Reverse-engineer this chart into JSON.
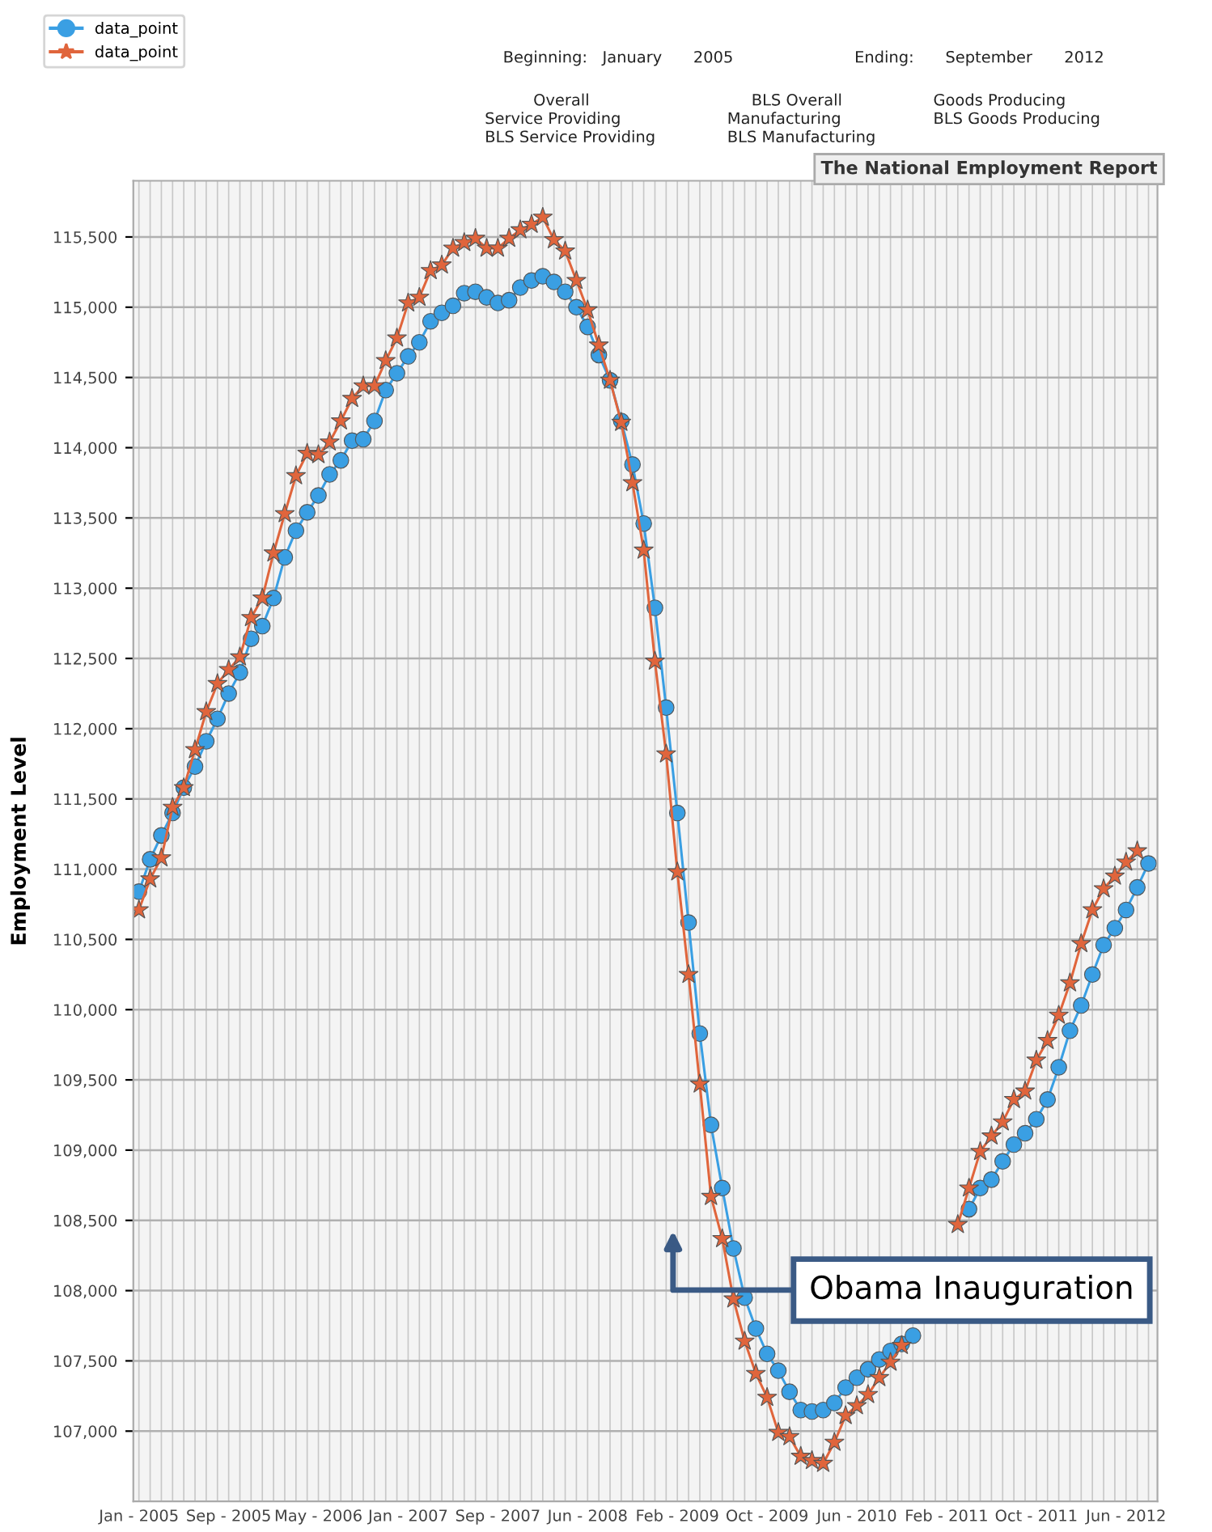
{
  "chart_data": {
    "type": "line",
    "title": "The National Employment Report",
    "ylabel": "Employment Level",
    "categories": [
      "Jan - 2005",
      null,
      null,
      null,
      null,
      null,
      null,
      null,
      "Sep - 2005",
      null,
      null,
      null,
      null,
      null,
      null,
      null,
      "May - 2006",
      null,
      null,
      null,
      null,
      null,
      null,
      null,
      "Jan - 2007",
      null,
      null,
      null,
      null,
      null,
      null,
      null,
      "Sep - 2007",
      null,
      null,
      null,
      null,
      null,
      null,
      null,
      "Jun - 2008",
      null,
      null,
      null,
      null,
      null,
      null,
      null,
      "Feb - 2009",
      null,
      null,
      null,
      null,
      null,
      null,
      null,
      "Oct - 2009",
      null,
      null,
      null,
      null,
      null,
      null,
      null,
      "Jun - 2010",
      null,
      null,
      null,
      null,
      null,
      null,
      null,
      "Feb - 2011",
      null,
      null,
      null,
      null,
      null,
      null,
      null,
      "Oct - 2011",
      null,
      null,
      null,
      null,
      null,
      null,
      null,
      "Jun - 2012",
      null,
      null
    ],
    "series": [
      {
        "name": "data_point",
        "color": "#3a9fe3",
        "marker": "circle",
        "values": [
          110840,
          111070,
          111240,
          111400,
          111580,
          111730,
          111910,
          112070,
          112250,
          112400,
          112640,
          112730,
          112930,
          113220,
          113410,
          113540,
          113660,
          113810,
          113910,
          114050,
          114060,
          114190,
          114410,
          114530,
          114650,
          114750,
          114900,
          114960,
          115010,
          115100,
          115110,
          115070,
          115030,
          115050,
          115140,
          115190,
          115220,
          115180,
          115110,
          115000,
          114860,
          114660,
          114480,
          114190,
          113880,
          113460,
          112860,
          112150,
          111400,
          110620,
          109830,
          109180,
          108730,
          108300,
          107950,
          107730,
          107550,
          107430,
          107280,
          107150,
          107140,
          107150,
          107200,
          107310,
          107380,
          107440,
          107510,
          107570,
          107620,
          107680,
          null,
          null,
          null,
          null,
          108580,
          108730,
          108790,
          108920,
          109040,
          109120,
          109220,
          109360,
          109590,
          109850,
          110030,
          110250,
          110460,
          110580,
          110710,
          110870,
          111040
        ]
      },
      {
        "name": "data_point",
        "color": "#e0653c",
        "marker": "star",
        "values": [
          110710,
          110930,
          111080,
          111440,
          111580,
          111850,
          112120,
          112320,
          112420,
          112510,
          112790,
          112930,
          113250,
          113530,
          113800,
          113960,
          113950,
          114040,
          114190,
          114350,
          114440,
          114440,
          114620,
          114780,
          115030,
          115070,
          115260,
          115300,
          115420,
          115460,
          115490,
          115420,
          115420,
          115490,
          115550,
          115590,
          115640,
          115480,
          115400,
          115190,
          114980,
          114730,
          114480,
          114180,
          113750,
          113270,
          112480,
          111820,
          110980,
          110250,
          109470,
          108670,
          108370,
          107940,
          107640,
          107410,
          107240,
          106990,
          106960,
          106820,
          106790,
          106770,
          106920,
          107110,
          107180,
          107260,
          107380,
          107490,
          107610,
          null,
          null,
          null,
          null,
          108470,
          108730,
          108990,
          109100,
          109200,
          109360,
          109420,
          109640,
          109780,
          109960,
          110190,
          110470,
          110710,
          110860,
          110950,
          111050,
          111130,
          null
        ]
      }
    ],
    "ylim": [
      106500,
      115900
    ],
    "yticks": [
      {
        "value": 107000,
        "label": "107,000"
      },
      {
        "value": 107500,
        "label": "107,500"
      },
      {
        "value": 108000,
        "label": "108,000"
      },
      {
        "value": 108500,
        "label": "108,500"
      },
      {
        "value": 109000,
        "label": "109,000"
      },
      {
        "value": 109500,
        "label": "109,500"
      },
      {
        "value": 110000,
        "label": "110,000"
      },
      {
        "value": 110500,
        "label": "110,500"
      },
      {
        "value": 111000,
        "label": "111,000"
      },
      {
        "value": 111500,
        "label": "111,500"
      },
      {
        "value": 112000,
        "label": "112,000"
      },
      {
        "value": 112500,
        "label": "112,500"
      },
      {
        "value": 113000,
        "label": "113,000"
      },
      {
        "value": 113500,
        "label": "113,500"
      },
      {
        "value": 114000,
        "label": "114,000"
      },
      {
        "value": 114500,
        "label": "114,500"
      },
      {
        "value": 115000,
        "label": "115,000"
      },
      {
        "value": 115500,
        "label": "115,500"
      }
    ],
    "grid": true,
    "legend": "top left",
    "line_style": "solid",
    "annotations": [
      "Obama Inauguration",
      "Beginning:",
      "January",
      "2005",
      "Ending:",
      "September",
      "2012",
      "Overall",
      "BLS Overall",
      "Goods Producing",
      "Service Providing",
      "Manufacturing",
      "BLS Goods Producing",
      "BLS Service Providing",
      "BLS Manufacturing"
    ]
  }
}
